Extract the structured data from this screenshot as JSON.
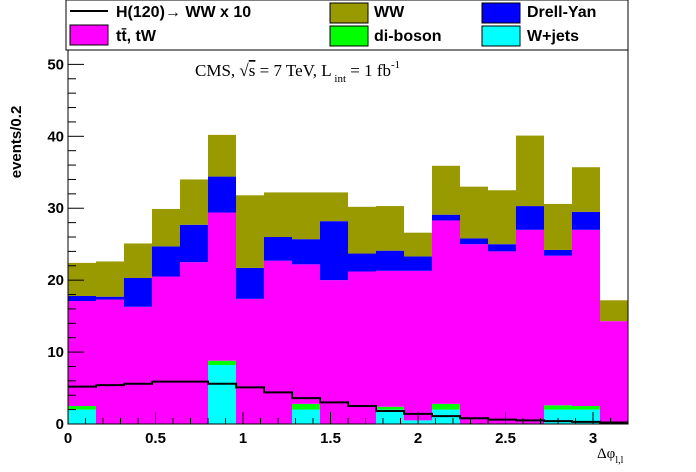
{
  "chart_data": {
    "type": "bar",
    "stacked": true,
    "xlabel": "Δφ",
    "xlabel_sub": "l,l",
    "ylabel": "events/0.2",
    "xlim": [
      0,
      3.2
    ],
    "ylim": [
      0,
      52
    ],
    "x_ticks": [
      "0",
      "0.5",
      "1",
      "1.5",
      "2",
      "2.5",
      "3"
    ],
    "y_ticks": [
      "0",
      "10",
      "20",
      "30",
      "40",
      "50"
    ],
    "annotation": {
      "prefix": "CMS, ",
      "sqrt": "√",
      "s_var": "s",
      "energy": " = 7 TeV, L",
      "int_sub": " int",
      "lumi": " = 1 fb",
      "lumi_exp": "-1"
    },
    "bin_edges": [
      0,
      0.16,
      0.32,
      0.48,
      0.64,
      0.8,
      0.96,
      1.12,
      1.28,
      1.44,
      1.6,
      1.76,
      1.92,
      2.08,
      2.24,
      2.4,
      2.56,
      2.72,
      2.88,
      3.04,
      3.2
    ],
    "stack_order": [
      "W+jets",
      "di-boson",
      "tt̄, tW",
      "Drell-Yan",
      "WW"
    ],
    "series": [
      {
        "name": "W+jets",
        "color": "#00ffff",
        "values": [
          2.0,
          0,
          0,
          0,
          0,
          8.2,
          0,
          0,
          2.0,
          0,
          0,
          2.0,
          0.5,
          2.0,
          0,
          0,
          0,
          2.0,
          2.0,
          0
        ]
      },
      {
        "name": "di-boson",
        "color": "#00ff00",
        "values": [
          0.5,
          0,
          0,
          0,
          0,
          0.6,
          0,
          0,
          0.8,
          0,
          0,
          0.4,
          0,
          0.8,
          0,
          0,
          0,
          0.6,
          0.5,
          0
        ]
      },
      {
        "name": "tt̄, tW",
        "color": "#ff00ff",
        "values": [
          14.6,
          17.3,
          16.3,
          20.5,
          22.5,
          20.6,
          17.4,
          22.7,
          19.4,
          20.0,
          21.2,
          18.9,
          20.8,
          25.5,
          25.0,
          24.0,
          27.0,
          20.8,
          24.5,
          14.3
        ]
      },
      {
        "name": "Drell-Yan",
        "color": "#0000ff",
        "values": [
          0.7,
          0.4,
          4.0,
          4.2,
          5.2,
          5.0,
          4.3,
          3.3,
          3.5,
          8.2,
          2.5,
          2.8,
          2.0,
          0.8,
          0.8,
          1.0,
          3.3,
          0.8,
          2.5,
          0
        ]
      },
      {
        "name": "WW",
        "color": "#999900",
        "values": [
          4.6,
          4.9,
          4.8,
          5.2,
          6.3,
          5.8,
          10.1,
          6.2,
          6.5,
          4.0,
          6.5,
          6.2,
          3.3,
          6.8,
          7.2,
          7.5,
          9.8,
          6.4,
          6.2,
          2.9
        ]
      }
    ],
    "signal": {
      "name": "H(120)→ WW x 10",
      "color": "#000000",
      "values": [
        5.2,
        5.4,
        5.6,
        5.9,
        5.9,
        5.6,
        5.1,
        4.4,
        3.6,
        3.0,
        2.5,
        1.8,
        1.4,
        1.1,
        0.8,
        0.6,
        0.5,
        0.4,
        0.3,
        0.2
      ]
    },
    "legend": [
      {
        "label": "H(120)→ WW x 10",
        "style": "line",
        "color": "#000000"
      },
      {
        "label": "WW",
        "style": "box",
        "color": "#999900"
      },
      {
        "label": "Drell-Yan",
        "style": "box",
        "color": "#0000ff"
      },
      {
        "label": "tt̄, tW",
        "style": "box",
        "color": "#ff00ff"
      },
      {
        "label": "di-boson",
        "style": "box",
        "color": "#00ff00"
      },
      {
        "label": "W+jets",
        "style": "box",
        "color": "#00ffff"
      }
    ],
    "legend_placement": "top"
  }
}
